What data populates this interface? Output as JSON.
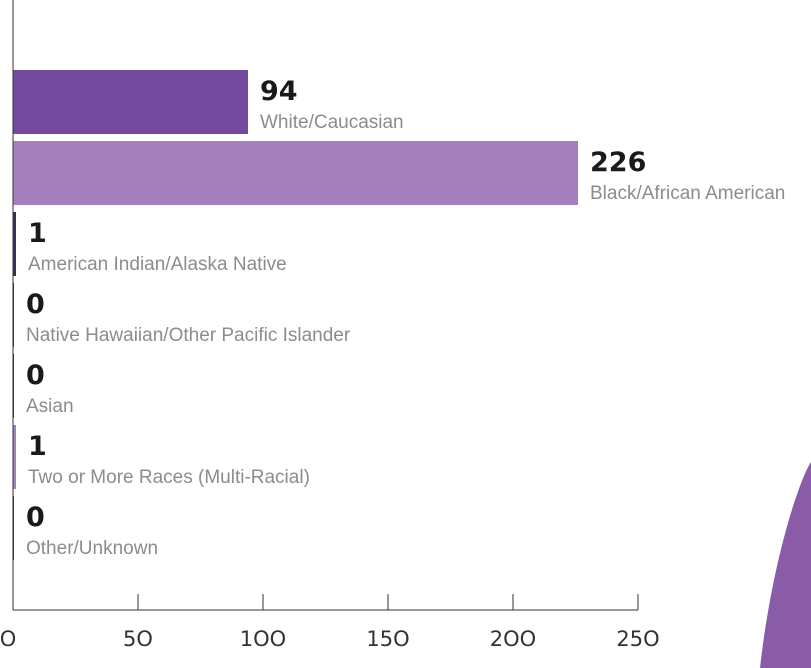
{
  "chart_data": {
    "type": "bar",
    "orientation": "horizontal",
    "categories": [
      "White/Caucasian",
      "Black/African American",
      "American Indian/Alaska Native",
      "Native Hawaiian/Other Pacific Islander",
      "Asian",
      "Two or More Races (Multi-Racial)",
      "Other/Unknown"
    ],
    "values": [
      94,
      226,
      1,
      0,
      0,
      1,
      0
    ],
    "value_labels": [
      "94",
      "226",
      "1",
      "0",
      "0",
      "1",
      "0"
    ],
    "bar_colors": [
      "#744a9e",
      "#a47fbb",
      "#3b2c5e",
      "#3b2c5e",
      "#3b2c5e",
      "#a47fbb",
      "#3b2c5e"
    ],
    "xlim": [
      0,
      250
    ],
    "xticks": [
      0,
      50,
      100,
      150,
      200,
      250
    ],
    "xtick_labels": [
      "O",
      "5O",
      "1OO",
      "15O",
      "2OO",
      "25O"
    ],
    "grid": false
  },
  "colors": {
    "axis": "#333333",
    "accent": "#8a5ca8",
    "value_text": "#1a1a1a",
    "category_text": "#8c8c8c"
  }
}
